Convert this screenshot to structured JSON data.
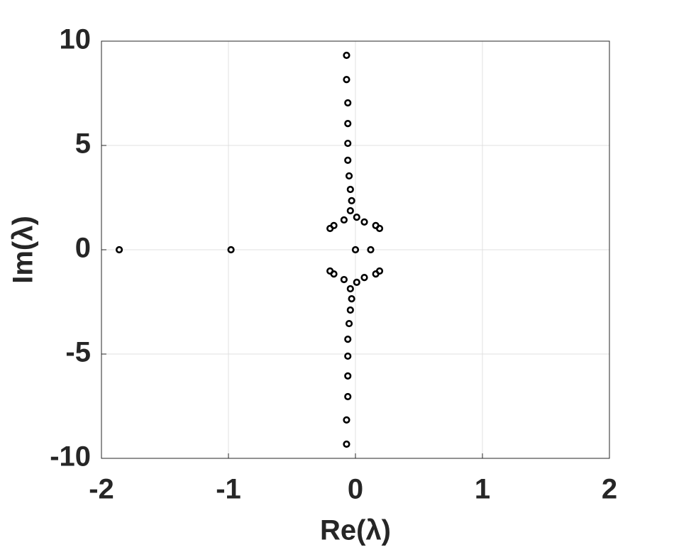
{
  "chart_data": {
    "type": "scatter",
    "xlabel": "Re(λ)",
    "ylabel": "Im(λ)",
    "color": "#000000",
    "grid": true,
    "xlim": [
      -2,
      2
    ],
    "xticks": [
      -2,
      -1,
      0,
      1,
      2
    ],
    "ylim": [
      -10,
      10
    ],
    "yticks": [
      -10,
      -5,
      0,
      5,
      10
    ],
    "x": [
      -1.86,
      -0.98,
      0,
      0.12,
      -0.07,
      -0.07,
      -0.06,
      -0.06,
      -0.06,
      -0.06,
      -0.05,
      -0.04,
      -0.03,
      -0.04,
      0.01,
      -0.09,
      0.07,
      -0.17,
      0.16,
      -0.2,
      0.19,
      -0.07,
      -0.07,
      -0.06,
      -0.06,
      -0.06,
      -0.06,
      -0.05,
      -0.04,
      -0.03,
      -0.04,
      0.01,
      -0.09,
      0.07,
      -0.17,
      0.16,
      -0.2,
      0.19
    ],
    "values": [
      0,
      0,
      0,
      0,
      9.32,
      8.16,
      7.04,
      6.05,
      5.1,
      4.29,
      3.54,
      2.89,
      2.35,
      1.87,
      1.56,
      1.43,
      1.33,
      1.16,
      1.16,
      1.02,
      1.02,
      -9.32,
      -8.16,
      -7.04,
      -6.05,
      -5.1,
      -4.29,
      -3.54,
      -2.89,
      -2.35,
      -1.87,
      -1.56,
      -1.43,
      -1.33,
      -1.16,
      -1.16,
      -1.02,
      -1.02
    ]
  }
}
